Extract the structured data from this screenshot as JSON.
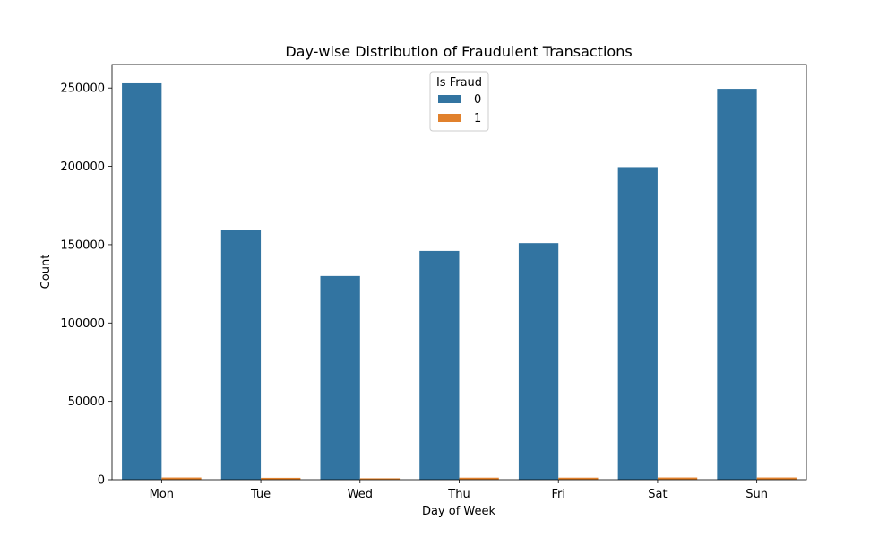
{
  "chart_data": {
    "type": "bar",
    "title": "Day-wise Distribution of Fraudulent Transactions",
    "xlabel": "Day of Week",
    "ylabel": "Count",
    "categories": [
      "Mon",
      "Tue",
      "Wed",
      "Thu",
      "Fri",
      "Sat",
      "Sun"
    ],
    "series": [
      {
        "name": "0",
        "color": "#3274a1",
        "values": [
          253000,
          159500,
          130000,
          146000,
          151000,
          199500,
          249500
        ]
      },
      {
        "name": "1",
        "color": "#e1812c",
        "values": [
          1400,
          1200,
          900,
          1300,
          1300,
          1400,
          1400
        ]
      }
    ],
    "ylim": [
      0,
      265000
    ],
    "yticks": [
      0,
      50000,
      100000,
      150000,
      200000,
      250000
    ],
    "legend": {
      "title": "Is Fraud",
      "position": "top-center"
    },
    "grid": false
  }
}
